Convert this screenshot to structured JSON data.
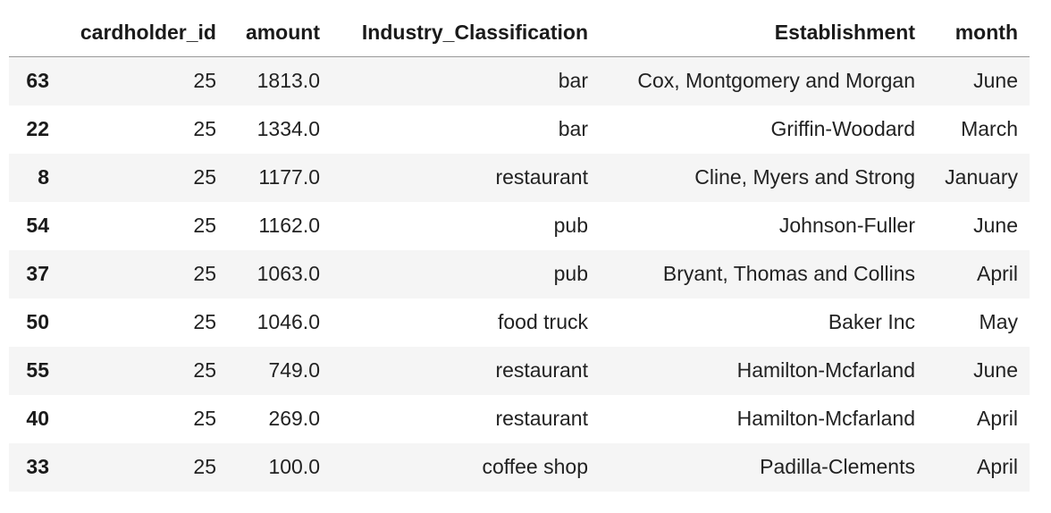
{
  "table": {
    "index_header": "",
    "columns": [
      "cardholder_id",
      "amount",
      "Industry_Classification",
      "Establishment",
      "month"
    ],
    "rows": [
      {
        "index": "63",
        "cardholder_id": "25",
        "amount": "1813.0",
        "industry": "bar",
        "establishment": "Cox, Montgomery and Morgan",
        "month": "June"
      },
      {
        "index": "22",
        "cardholder_id": "25",
        "amount": "1334.0",
        "industry": "bar",
        "establishment": "Griffin-Woodard",
        "month": "March"
      },
      {
        "index": "8",
        "cardholder_id": "25",
        "amount": "1177.0",
        "industry": "restaurant",
        "establishment": "Cline, Myers and Strong",
        "month": "January"
      },
      {
        "index": "54",
        "cardholder_id": "25",
        "amount": "1162.0",
        "industry": "pub",
        "establishment": "Johnson-Fuller",
        "month": "June"
      },
      {
        "index": "37",
        "cardholder_id": "25",
        "amount": "1063.0",
        "industry": "pub",
        "establishment": "Bryant, Thomas and Collins",
        "month": "April"
      },
      {
        "index": "50",
        "cardholder_id": "25",
        "amount": "1046.0",
        "industry": "food truck",
        "establishment": "Baker Inc",
        "month": "May"
      },
      {
        "index": "55",
        "cardholder_id": "25",
        "amount": "749.0",
        "industry": "restaurant",
        "establishment": "Hamilton-Mcfarland",
        "month": "June"
      },
      {
        "index": "40",
        "cardholder_id": "25",
        "amount": "269.0",
        "industry": "restaurant",
        "establishment": "Hamilton-Mcfarland",
        "month": "April"
      },
      {
        "index": "33",
        "cardholder_id": "25",
        "amount": "100.0",
        "industry": "coffee shop",
        "establishment": "Padilla-Clements",
        "month": "April"
      }
    ]
  }
}
